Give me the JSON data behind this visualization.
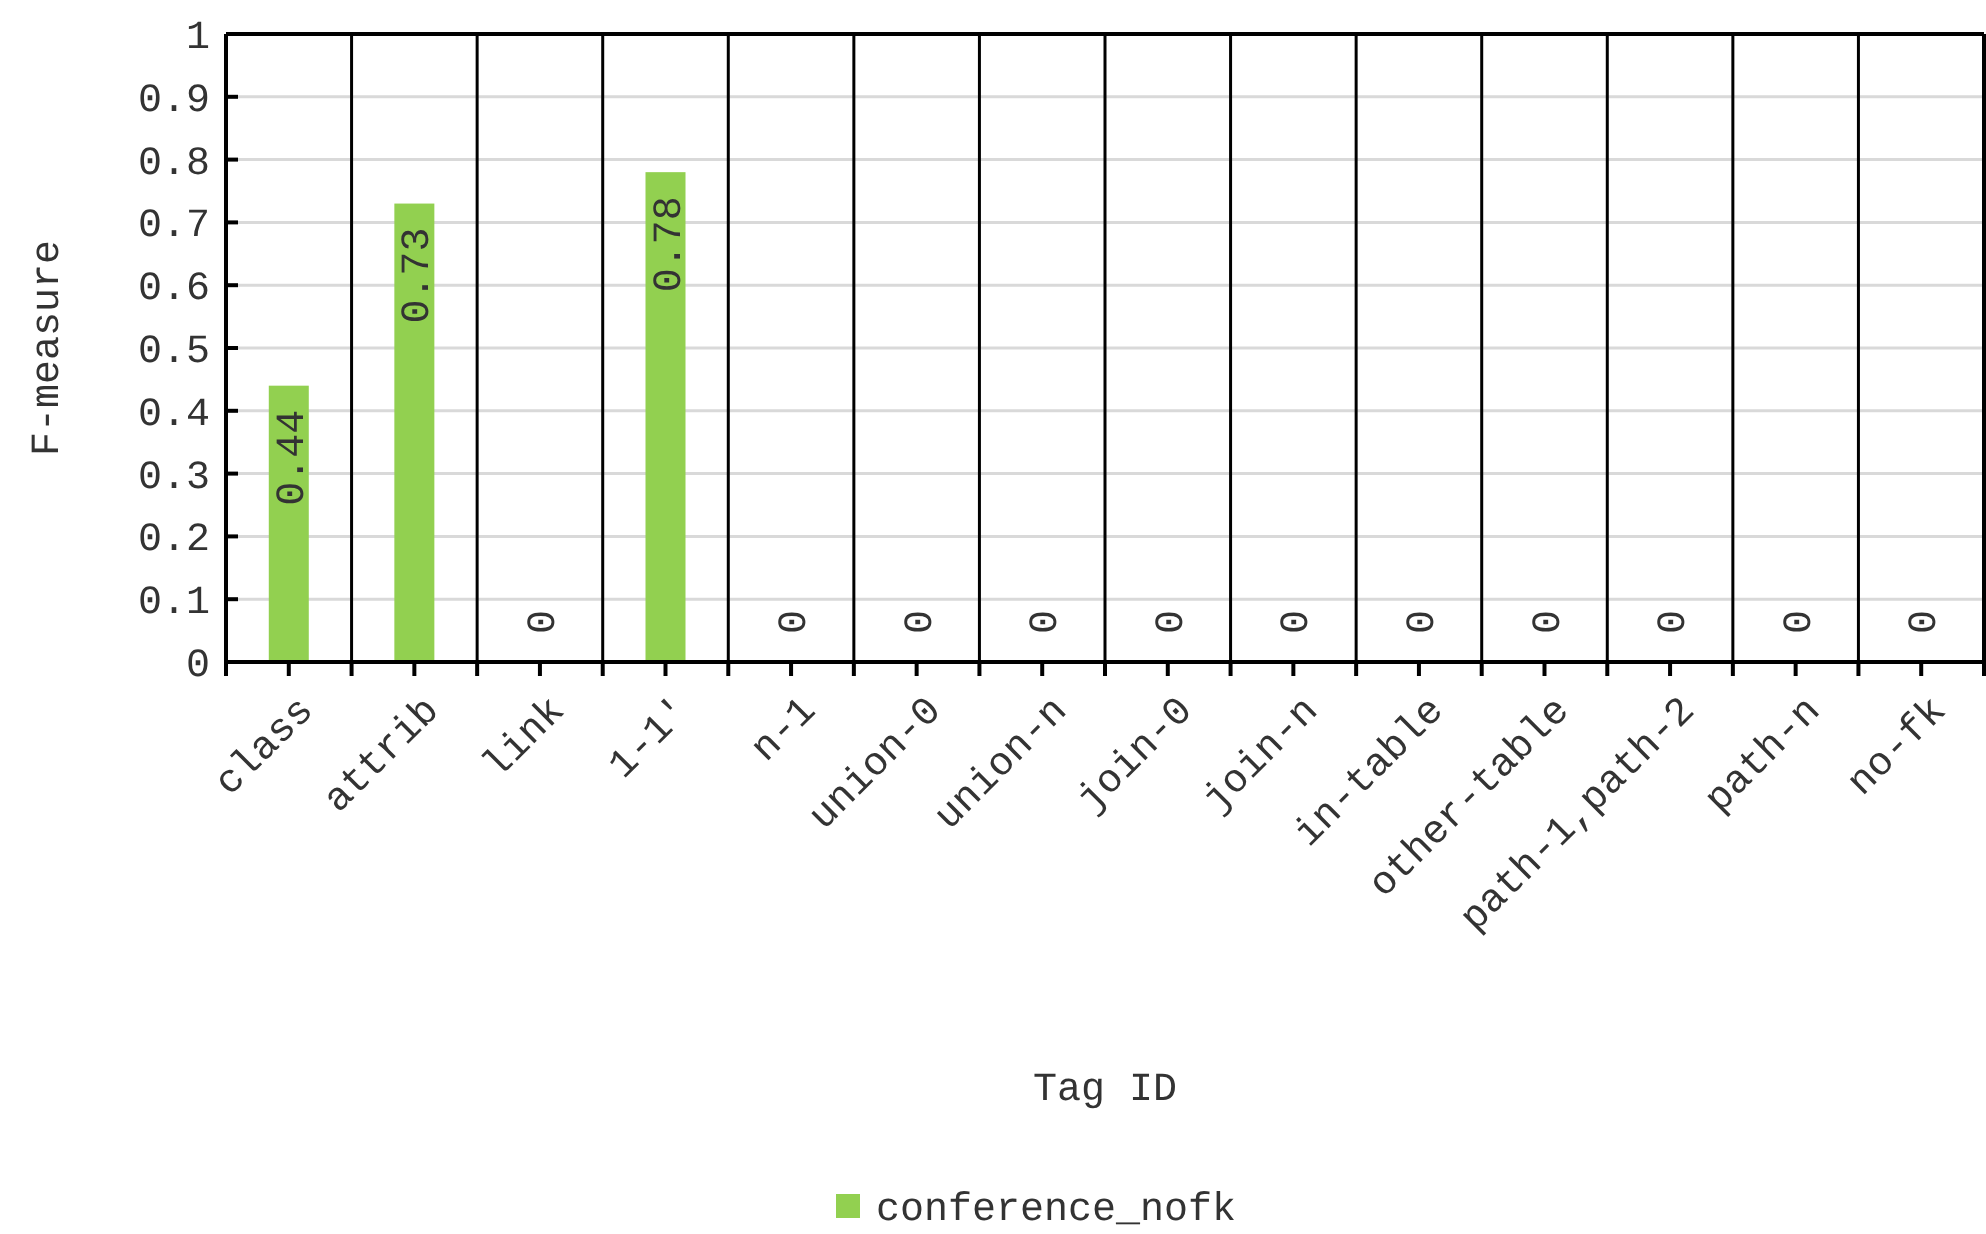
{
  "chart_data": {
    "type": "bar",
    "xlabel": "Tag ID",
    "ylabel": "F-measure",
    "categories": [
      "class",
      "attrib",
      "link",
      "1-1'",
      "n-1",
      "union-0",
      "union-n",
      "join-0",
      "join-n",
      "in-table",
      "other-table",
      "path-1,path-2",
      "path-n",
      "no-fk"
    ],
    "series": [
      {
        "name": "conference_nofk",
        "color": "#92d050",
        "values": [
          0.44,
          0.73,
          0,
          0.78,
          0,
          0,
          0,
          0,
          0,
          0,
          0,
          0,
          0,
          0
        ]
      }
    ],
    "ylim": [
      0,
      1
    ],
    "yticks": [
      0,
      0.1,
      0.2,
      0.3,
      0.4,
      0.5,
      0.6,
      0.7,
      0.8,
      0.9,
      1
    ],
    "grid": "y",
    "legend": "bottom",
    "data_labels": true
  }
}
